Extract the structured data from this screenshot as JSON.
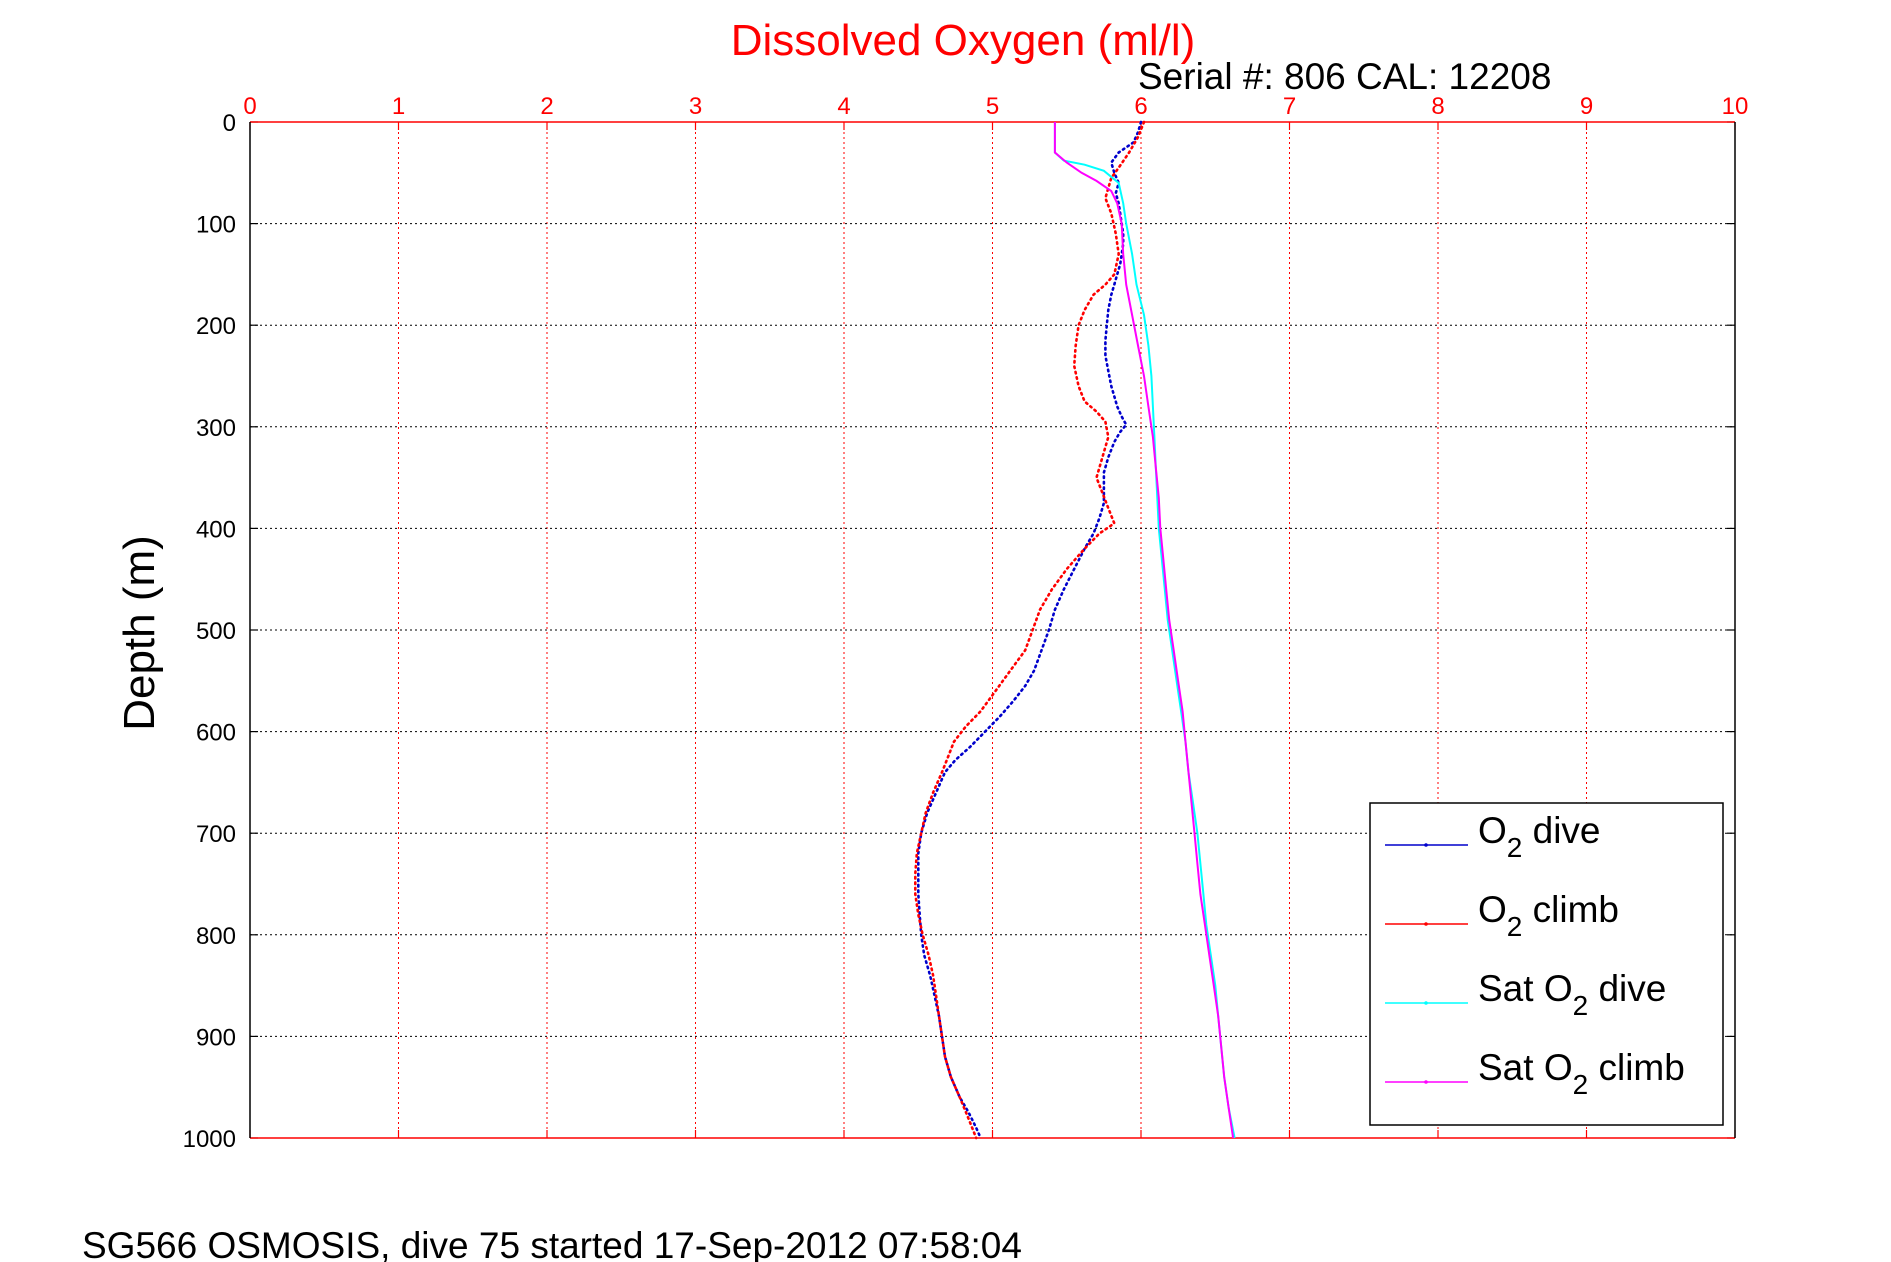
{
  "chart_data": {
    "type": "line",
    "title": "Dissolved Oxygen (ml/l)",
    "subtitle": "Serial #: 806  CAL: 12208",
    "ylabel": "Depth (m)",
    "xlabel": "",
    "footer": "SG566 OSMOSIS, dive 75 started 17-Sep-2012 07:58:04",
    "xlim": [
      0,
      10
    ],
    "ylim": [
      0,
      1000
    ],
    "y_reversed": true,
    "x_ticks": [
      "0",
      "1",
      "2",
      "3",
      "4",
      "5",
      "6",
      "7",
      "8",
      "9",
      "10"
    ],
    "y_ticks": [
      "0",
      "100",
      "200",
      "300",
      "400",
      "500",
      "600",
      "700",
      "800",
      "900",
      "1000"
    ],
    "grid": true,
    "x_axis_position": "top",
    "legend_position": "bottom-right",
    "colors": {
      "title": "#ff0000",
      "x_axis": "#ff0000",
      "grid_x": "#ff0000",
      "grid_y": "#000000",
      "axis_y": "#000000"
    },
    "series": [
      {
        "name": "O₂ dive",
        "color": "#0000cc",
        "style": "dotted",
        "points": [
          [
            6.0,
            0
          ],
          [
            5.98,
            10
          ],
          [
            5.95,
            20
          ],
          [
            5.85,
            30
          ],
          [
            5.8,
            40
          ],
          [
            5.82,
            50
          ],
          [
            5.85,
            60
          ],
          [
            5.83,
            70
          ],
          [
            5.85,
            80
          ],
          [
            5.86,
            90
          ],
          [
            5.87,
            100
          ],
          [
            5.88,
            110
          ],
          [
            5.88,
            120
          ],
          [
            5.87,
            130
          ],
          [
            5.86,
            140
          ],
          [
            5.84,
            150
          ],
          [
            5.82,
            160
          ],
          [
            5.8,
            170
          ],
          [
            5.78,
            185
          ],
          [
            5.77,
            200
          ],
          [
            5.76,
            215
          ],
          [
            5.76,
            230
          ],
          [
            5.78,
            245
          ],
          [
            5.8,
            260
          ],
          [
            5.82,
            270
          ],
          [
            5.84,
            280
          ],
          [
            5.87,
            290
          ],
          [
            5.9,
            298
          ],
          [
            5.86,
            305
          ],
          [
            5.82,
            315
          ],
          [
            5.78,
            330
          ],
          [
            5.75,
            345
          ],
          [
            5.75,
            360
          ],
          [
            5.75,
            375
          ],
          [
            5.72,
            390
          ],
          [
            5.68,
            405
          ],
          [
            5.62,
            420
          ],
          [
            5.55,
            440
          ],
          [
            5.48,
            460
          ],
          [
            5.42,
            480
          ],
          [
            5.38,
            500
          ],
          [
            5.33,
            520
          ],
          [
            5.28,
            540
          ],
          [
            5.22,
            555
          ],
          [
            5.14,
            570
          ],
          [
            5.05,
            585
          ],
          [
            4.95,
            600
          ],
          [
            4.85,
            615
          ],
          [
            4.75,
            628
          ],
          [
            4.68,
            640
          ],
          [
            4.62,
            660
          ],
          [
            4.56,
            680
          ],
          [
            4.52,
            700
          ],
          [
            4.5,
            720
          ],
          [
            4.5,
            740
          ],
          [
            4.5,
            760
          ],
          [
            4.51,
            780
          ],
          [
            4.52,
            800
          ],
          [
            4.54,
            820
          ],
          [
            4.58,
            840
          ],
          [
            4.61,
            860
          ],
          [
            4.64,
            880
          ],
          [
            4.66,
            900
          ],
          [
            4.68,
            920
          ],
          [
            4.72,
            940
          ],
          [
            4.78,
            960
          ],
          [
            4.84,
            975
          ],
          [
            4.89,
            990
          ],
          [
            4.92,
            1000
          ]
        ]
      },
      {
        "name": "O₂ climb",
        "color": "#ff0000",
        "style": "dotted",
        "points": [
          [
            6.02,
            0
          ],
          [
            5.98,
            15
          ],
          [
            5.92,
            30
          ],
          [
            5.85,
            45
          ],
          [
            5.8,
            55
          ],
          [
            5.78,
            65
          ],
          [
            5.76,
            75
          ],
          [
            5.8,
            90
          ],
          [
            5.83,
            110
          ],
          [
            5.85,
            130
          ],
          [
            5.82,
            150
          ],
          [
            5.76,
            160
          ],
          [
            5.68,
            170
          ],
          [
            5.62,
            185
          ],
          [
            5.58,
            200
          ],
          [
            5.56,
            220
          ],
          [
            5.55,
            240
          ],
          [
            5.58,
            260
          ],
          [
            5.62,
            275
          ],
          [
            5.7,
            285
          ],
          [
            5.76,
            295
          ],
          [
            5.78,
            310
          ],
          [
            5.74,
            330
          ],
          [
            5.7,
            350
          ],
          [
            5.74,
            365
          ],
          [
            5.78,
            380
          ],
          [
            5.82,
            395
          ],
          [
            5.72,
            405
          ],
          [
            5.62,
            420
          ],
          [
            5.5,
            440
          ],
          [
            5.4,
            460
          ],
          [
            5.32,
            480
          ],
          [
            5.27,
            500
          ],
          [
            5.22,
            520
          ],
          [
            5.12,
            540
          ],
          [
            5.02,
            560
          ],
          [
            4.92,
            580
          ],
          [
            4.82,
            595
          ],
          [
            4.74,
            610
          ],
          [
            4.7,
            625
          ],
          [
            4.66,
            640
          ],
          [
            4.6,
            660
          ],
          [
            4.55,
            680
          ],
          [
            4.52,
            700
          ],
          [
            4.49,
            720
          ],
          [
            4.48,
            740
          ],
          [
            4.48,
            760
          ],
          [
            4.5,
            780
          ],
          [
            4.53,
            800
          ],
          [
            4.57,
            820
          ],
          [
            4.6,
            840
          ],
          [
            4.62,
            860
          ],
          [
            4.64,
            880
          ],
          [
            4.66,
            900
          ],
          [
            4.68,
            920
          ],
          [
            4.72,
            940
          ],
          [
            4.78,
            960
          ],
          [
            4.83,
            978
          ],
          [
            4.89,
            1000
          ]
        ]
      },
      {
        "name": "Sat O₂ dive",
        "color": "#00ffff",
        "style": "solid",
        "points": [
          [
            5.42,
            0
          ],
          [
            5.42,
            30
          ],
          [
            5.48,
            38
          ],
          [
            5.62,
            42
          ],
          [
            5.75,
            48
          ],
          [
            5.85,
            60
          ],
          [
            5.88,
            80
          ],
          [
            5.9,
            100
          ],
          [
            5.94,
            130
          ],
          [
            5.97,
            160
          ],
          [
            6.02,
            190
          ],
          [
            6.05,
            220
          ],
          [
            6.07,
            250
          ],
          [
            6.08,
            280
          ],
          [
            6.09,
            310
          ],
          [
            6.1,
            340
          ],
          [
            6.11,
            370
          ],
          [
            6.12,
            400
          ],
          [
            6.14,
            430
          ],
          [
            6.16,
            460
          ],
          [
            6.18,
            490
          ],
          [
            6.21,
            520
          ],
          [
            6.24,
            550
          ],
          [
            6.27,
            580
          ],
          [
            6.3,
            610
          ],
          [
            6.32,
            640
          ],
          [
            6.35,
            670
          ],
          [
            6.38,
            700
          ],
          [
            6.4,
            730
          ],
          [
            6.42,
            760
          ],
          [
            6.44,
            790
          ],
          [
            6.47,
            820
          ],
          [
            6.5,
            850
          ],
          [
            6.52,
            880
          ],
          [
            6.54,
            910
          ],
          [
            6.56,
            940
          ],
          [
            6.59,
            970
          ],
          [
            6.63,
            1000
          ]
        ]
      },
      {
        "name": "Sat O₂ climb",
        "color": "#ff00ff",
        "style": "solid",
        "points": [
          [
            5.42,
            0
          ],
          [
            5.42,
            30
          ],
          [
            5.5,
            40
          ],
          [
            5.6,
            50
          ],
          [
            5.7,
            58
          ],
          [
            5.8,
            68
          ],
          [
            5.84,
            80
          ],
          [
            5.87,
            100
          ],
          [
            5.88,
            130
          ],
          [
            5.9,
            160
          ],
          [
            5.94,
            190
          ],
          [
            5.98,
            220
          ],
          [
            6.02,
            250
          ],
          [
            6.05,
            280
          ],
          [
            6.08,
            310
          ],
          [
            6.1,
            340
          ],
          [
            6.12,
            370
          ],
          [
            6.13,
            400
          ],
          [
            6.15,
            430
          ],
          [
            6.17,
            460
          ],
          [
            6.19,
            490
          ],
          [
            6.22,
            520
          ],
          [
            6.25,
            550
          ],
          [
            6.28,
            580
          ],
          [
            6.3,
            610
          ],
          [
            6.32,
            640
          ],
          [
            6.34,
            670
          ],
          [
            6.36,
            700
          ],
          [
            6.38,
            730
          ],
          [
            6.4,
            760
          ],
          [
            6.43,
            790
          ],
          [
            6.46,
            820
          ],
          [
            6.49,
            850
          ],
          [
            6.52,
            880
          ],
          [
            6.54,
            910
          ],
          [
            6.56,
            940
          ],
          [
            6.59,
            970
          ],
          [
            6.62,
            1000
          ]
        ]
      }
    ],
    "legend": {
      "entries": [
        {
          "base": "O",
          "sub": "2",
          "rest": " dive"
        },
        {
          "base": "O",
          "sub": "2",
          "rest": " climb"
        },
        {
          "base": "Sat O",
          "sub": "2",
          "rest": " dive"
        },
        {
          "base": "Sat O",
          "sub": "2",
          "rest": " climb"
        }
      ]
    }
  }
}
